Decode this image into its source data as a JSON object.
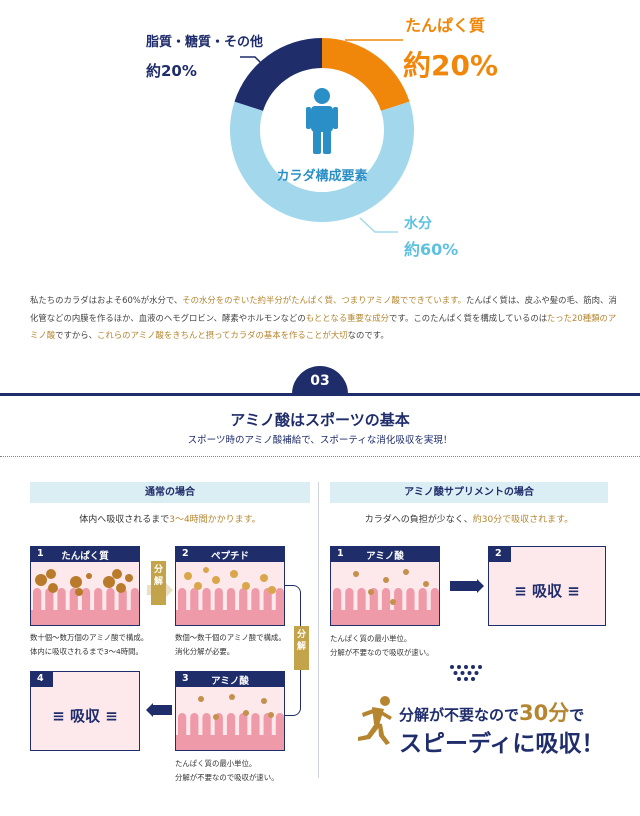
{
  "donut": {
    "center_label": "カラダ構成要素",
    "segments": [
      {
        "name": "たんぱく質",
        "value_label": "約20%",
        "percent": 20,
        "color": "#f0870b"
      },
      {
        "name": "水分",
        "value_label": "約60%",
        "percent": 60,
        "color": "#a3d8ec"
      },
      {
        "name": "脂質・糖質・その他",
        "value_label": "約20%",
        "percent": 20,
        "color": "#1f2d6b"
      }
    ],
    "body_icon_color": "#2b8fc7"
  },
  "intro": {
    "p1": "私たちのカラダはおよそ60%が水分で、",
    "p2": "その水分をのぞいた約半分がたんぱく質、つまりアミノ酸でできています。",
    "p3": "たんぱく質は、皮ふや髪の毛、筋肉、消化管などの内膜を作るほか、血液のヘモグロビン、酵素やホルモンなどの",
    "p4": "もととなる重要な成分",
    "p5": "です。このたんぱく質を構成しているのは",
    "p6": "たった20種類のアミノ酸",
    "p7": "ですから、",
    "p8": "これらのアミノ酸をきちんと摂ってカラダの基本を作ることが大切",
    "p9": "なのです。"
  },
  "section": {
    "number": "03",
    "title": "アミノ酸はスポーツの基本",
    "subtitle": "スポーツ時のアミノ酸補給で、スポーティな消化吸収を実現！"
  },
  "left": {
    "heading": "通常の場合",
    "sub_a": "体内へ吸収されるまで",
    "sub_b": "3〜4時間かかります。",
    "steps": [
      {
        "num": "1",
        "title": "たんぱく質"
      },
      {
        "num": "2",
        "title": "ペプチド"
      },
      {
        "num": "3",
        "title": "アミノ酸"
      },
      {
        "num": "4",
        "title": "吸収"
      }
    ],
    "split_label": "分解",
    "notes": {
      "n1a": "数十個〜数万個のアミノ酸で構成。",
      "n1b": "体内に吸収されるまで3〜4時間。",
      "n2a": "数個〜数千個のアミノ酸で構成。",
      "n2b": "消化分解が必要。",
      "n3a": "たんぱく質の最小単位。",
      "n3b": "分解が不要なので吸収が速い。"
    }
  },
  "right": {
    "heading": "アミノ酸サプリメントの場合",
    "sub_a": "カラダへの負担が少なく、",
    "sub_b": "約30分で吸収されます。",
    "steps": [
      {
        "num": "1",
        "title": "アミノ酸"
      },
      {
        "num": "2",
        "title": "吸収"
      }
    ],
    "notes": {
      "n1a": "たんぱく質の最小単位。",
      "n1b": "分解が不要なので吸収が速い。"
    },
    "tagline": {
      "a": "分解が不要なので",
      "b": "30分",
      "c": "で",
      "d": "スピーディに吸収！"
    }
  },
  "colors": {
    "navy": "#1f2d6b",
    "gold": "#c4a44a",
    "pink": "#fde8ec",
    "villi": "#ef9aa8",
    "orange": "#f0870b",
    "water": "#a3d8ec"
  }
}
